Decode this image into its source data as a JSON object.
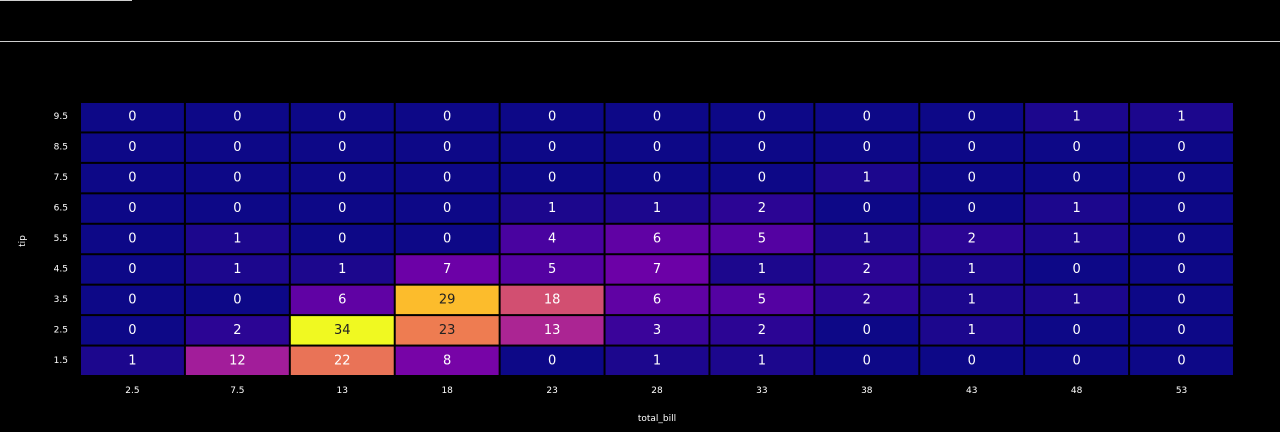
{
  "colors": {
    "background": "#000000",
    "colorscale": "plasma",
    "text_light": "#ffffff",
    "text_dark": "#222222"
  },
  "chart_data": {
    "type": "heatmap",
    "title": "",
    "xlabel": "total_bill",
    "ylabel": "tip",
    "x": [
      "2.5",
      "7.5",
      "13",
      "18",
      "23",
      "28",
      "33",
      "38",
      "43",
      "48",
      "53"
    ],
    "y": [
      "9.5",
      "8.5",
      "7.5",
      "6.5",
      "5.5",
      "4.5",
      "3.5",
      "2.5",
      "1.5"
    ],
    "z": [
      [
        0,
        0,
        0,
        0,
        0,
        0,
        0,
        0,
        0,
        1,
        1
      ],
      [
        0,
        0,
        0,
        0,
        0,
        0,
        0,
        0,
        0,
        0,
        0
      ],
      [
        0,
        0,
        0,
        0,
        0,
        0,
        0,
        1,
        0,
        0,
        0
      ],
      [
        0,
        0,
        0,
        0,
        1,
        1,
        2,
        0,
        0,
        1,
        0
      ],
      [
        0,
        1,
        0,
        0,
        4,
        6,
        5,
        1,
        2,
        1,
        0
      ],
      [
        0,
        1,
        1,
        7,
        5,
        7,
        1,
        2,
        1,
        0,
        0
      ],
      [
        0,
        0,
        6,
        29,
        18,
        6,
        5,
        2,
        1,
        1,
        0
      ],
      [
        0,
        2,
        34,
        23,
        13,
        3,
        2,
        0,
        1,
        0,
        0
      ],
      [
        1,
        12,
        22,
        8,
        0,
        1,
        1,
        0,
        0,
        0,
        0
      ]
    ],
    "zmin": 0,
    "zmax": 34,
    "show_values": true,
    "legend": "none",
    "grid": false
  }
}
